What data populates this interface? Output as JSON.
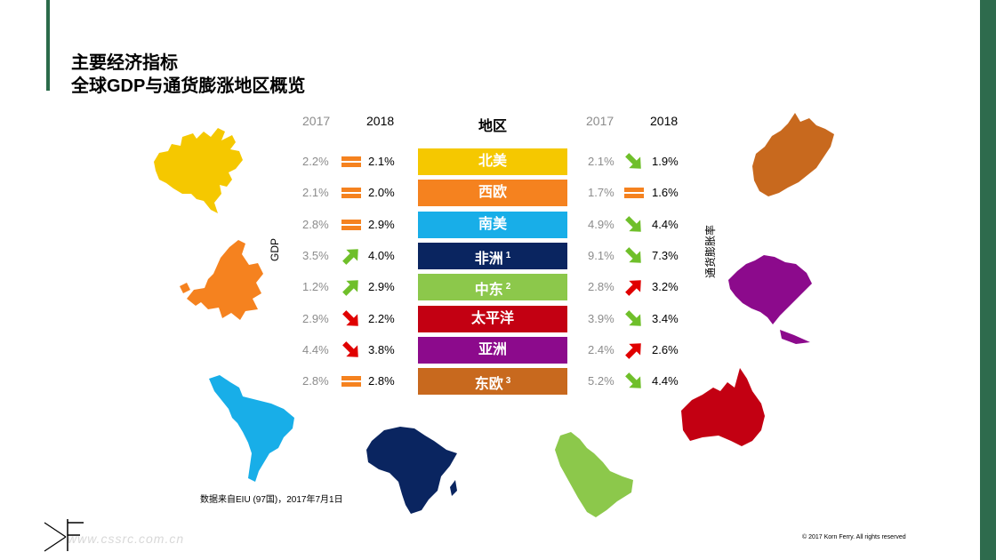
{
  "title_line1": "主要经济指标",
  "title_line2": "全球GDP与通货膨涨地区概览",
  "headers": {
    "gdp_2017": "2017",
    "gdp_2018": "2018",
    "region": "地区",
    "inf_2017": "2017",
    "inf_2018": "2018"
  },
  "axis_labels": {
    "gdp": "GDP",
    "inflation": "通货膨胀率"
  },
  "rows": [
    {
      "region": "北美",
      "note": "",
      "color": "#f5c800",
      "gdp_2017": "2.2%",
      "gdp_2018": "2.1%",
      "gdp_trend": "flat",
      "inf_2017": "2.1%",
      "inf_2018": "1.9%",
      "inf_trend": "down"
    },
    {
      "region": "西欧",
      "note": "",
      "color": "#f5821f",
      "gdp_2017": "2.1%",
      "gdp_2018": "2.0%",
      "gdp_trend": "flat",
      "inf_2017": "1.7%",
      "inf_2018": "1.6%",
      "inf_trend": "flat"
    },
    {
      "region": "南美",
      "note": "",
      "color": "#18aee8",
      "gdp_2017": "2.8%",
      "gdp_2018": "2.9%",
      "gdp_trend": "flat",
      "inf_2017": "4.9%",
      "inf_2018": "4.4%",
      "inf_trend": "down"
    },
    {
      "region": "非洲",
      "note": "1",
      "color": "#0a2560",
      "gdp_2017": "3.5%",
      "gdp_2018": "4.0%",
      "gdp_trend": "up",
      "inf_2017": "9.1%",
      "inf_2018": "7.3%",
      "inf_trend": "down"
    },
    {
      "region": "中东",
      "note": "2",
      "color": "#8cc84b",
      "gdp_2017": "1.2%",
      "gdp_2018": "2.9%",
      "gdp_trend": "up",
      "inf_2017": "2.8%",
      "inf_2018": "3.2%",
      "inf_trend": "up"
    },
    {
      "region": "太平洋",
      "note": "",
      "color": "#c30012",
      "gdp_2017": "2.9%",
      "gdp_2018": "2.2%",
      "gdp_trend": "down",
      "inf_2017": "3.9%",
      "inf_2018": "3.4%",
      "inf_trend": "down"
    },
    {
      "region": "亚洲",
      "note": "",
      "color": "#8c0a8c",
      "gdp_2017": "4.4%",
      "gdp_2018": "3.8%",
      "gdp_trend": "down",
      "inf_2017": "2.4%",
      "inf_2018": "2.6%",
      "inf_trend": "up"
    },
    {
      "region": "东欧",
      "note": "3",
      "color": "#c8691e",
      "gdp_2017": "2.8%",
      "gdp_2018": "2.8%",
      "gdp_trend": "flat",
      "inf_2017": "5.2%",
      "inf_2018": "4.4%",
      "inf_trend": "down"
    }
  ],
  "trend_colors": {
    "flat": "#f5821f",
    "up": "#6fbf2a",
    "down_gdp": "#e00000",
    "down_inf": "#6fbf2a",
    "up_inf": "#e00000"
  },
  "source": "数据来自EIU (97国)，2017年7月1日",
  "copyright": "© 2017 Korn Ferry. All rights reserved",
  "watermark": "www.cssrc.com.cn",
  "maps": [
    {
      "name": "north-america-map",
      "color": "#f5c800"
    },
    {
      "name": "europe-map",
      "color": "#f5821f"
    },
    {
      "name": "south-america-map",
      "color": "#18aee8"
    },
    {
      "name": "africa-map",
      "color": "#0a2560"
    },
    {
      "name": "middle-east-map",
      "color": "#8cc84b"
    },
    {
      "name": "russia-map",
      "color": "#c8691e"
    },
    {
      "name": "asia-map",
      "color": "#8c0a8c"
    },
    {
      "name": "australia-map",
      "color": "#c30012"
    }
  ]
}
